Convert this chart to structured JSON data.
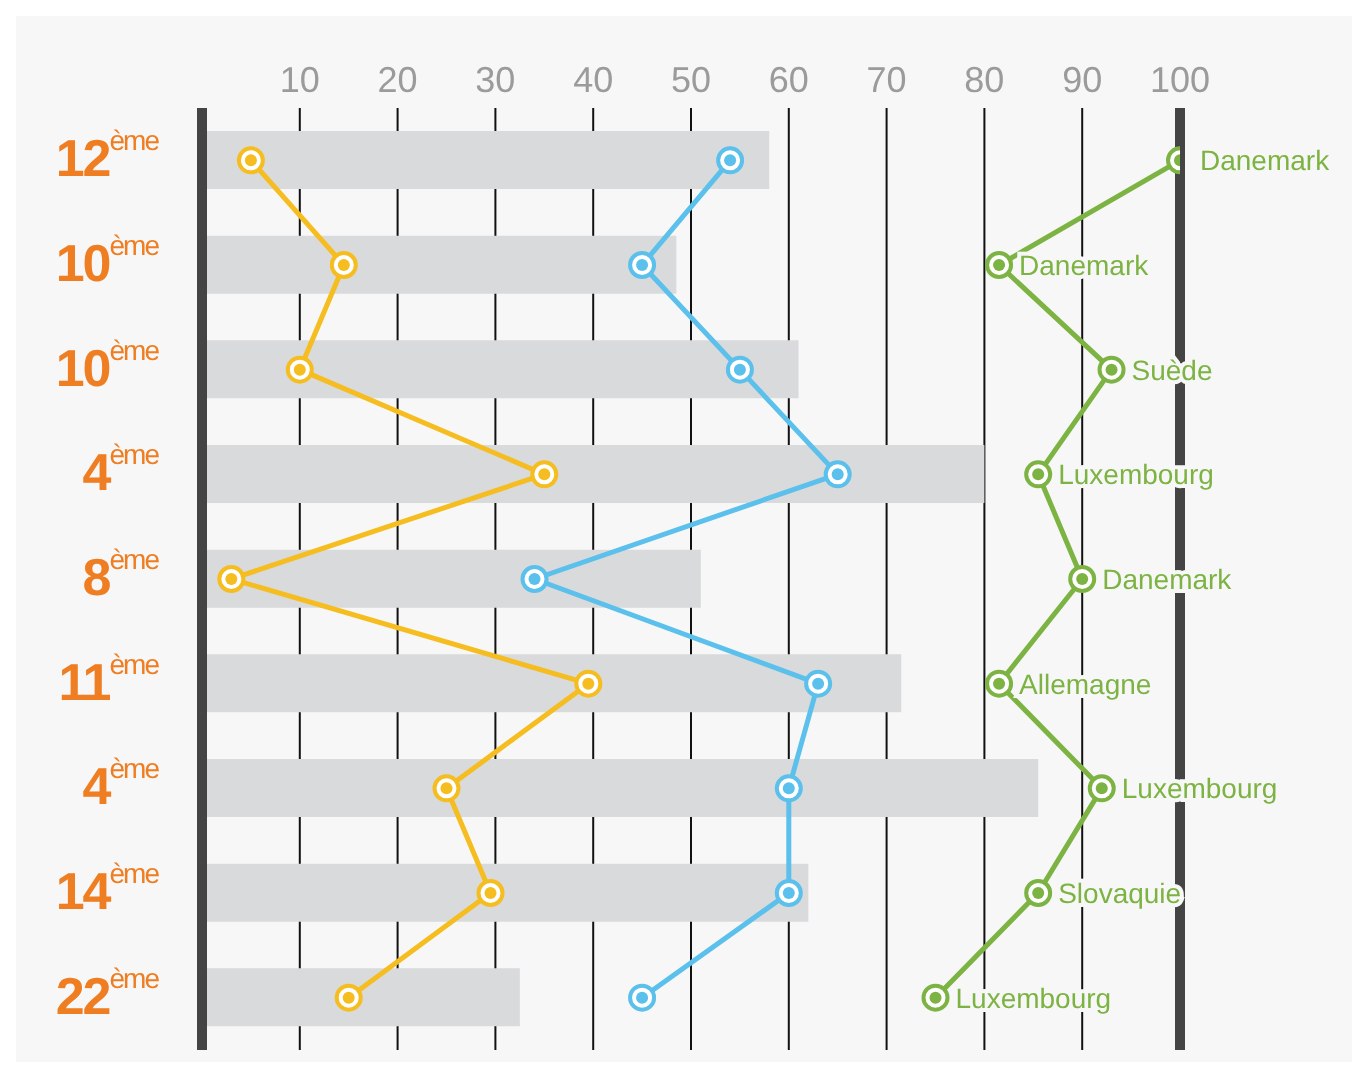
{
  "chart_data": {
    "type": "bar",
    "orientation": "horizontal",
    "categories": [
      "12$^{ème}$",
      "10$^{ème}$",
      "10$^{ème}$",
      "4$^{ème}$",
      "8$^{ème}$",
      "11$^{ème}$",
      "4$^{ème}$",
      "14$^{ème}$",
      "22$^{ème}$"
    ],
    "series": [
      {
        "color": "#d9dadc",
        "values": [
          58,
          48.5,
          61,
          80,
          51,
          71.5,
          85.5,
          62,
          32.5
        ]
      },
      {
        "type": "line",
        "color": "#f5bd1f",
        "values": [
          5,
          14.5,
          10,
          35,
          3,
          39.5,
          25,
          29.5,
          15
        ]
      },
      {
        "type": "line",
        "color": "#5bc0eb",
        "values": [
          54,
          45,
          55,
          65,
          34,
          63,
          60,
          60,
          45
        ]
      },
      {
        "type": "line",
        "color": "#7cb342",
        "values": [
          100,
          81.5,
          93,
          85.5,
          90,
          81.5,
          92,
          85.5,
          75
        ],
        "value_labels": [
          "Danemark",
          "Danemark",
          "Suède",
          "Luxembourg",
          "Danemark",
          "Allemagne",
          "Luxembourg",
          "Slovaquie",
          "Luxembourg"
        ]
      }
    ],
    "xlim": [
      0,
      100
    ],
    "xticks": [
      10,
      20,
      30,
      40,
      50,
      60,
      70,
      80,
      90,
      100
    ],
    "grid": "x",
    "marker": "circle",
    "line_style": "solid",
    "legend": false
  }
}
